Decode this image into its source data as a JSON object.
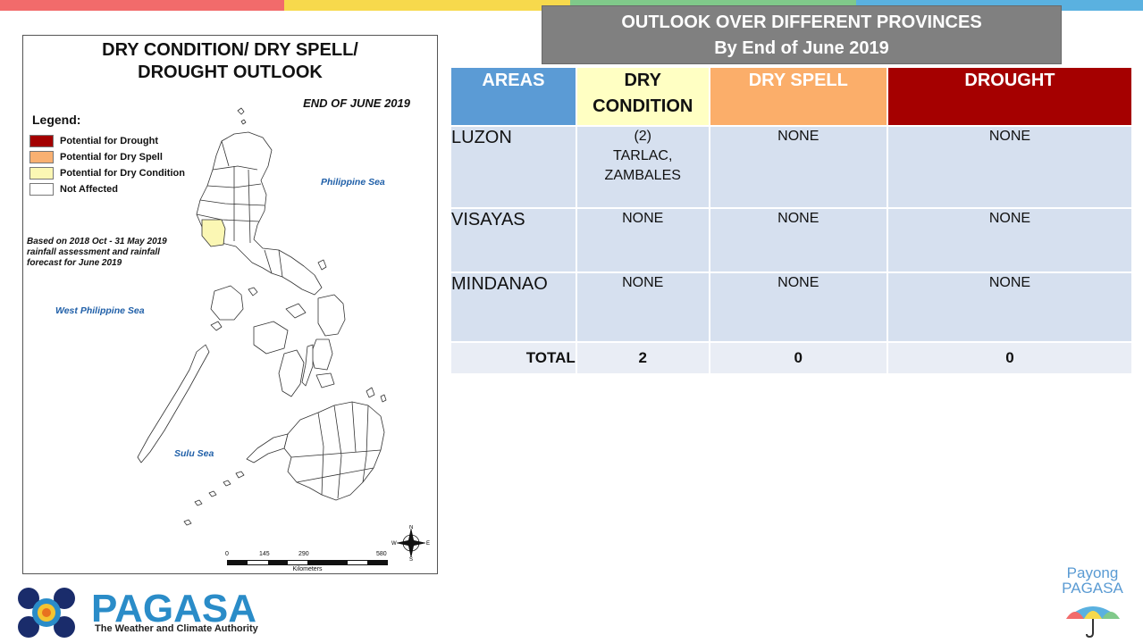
{
  "top_bar_colors": [
    "#f26b6b",
    "#f7d94c",
    "#80c98a",
    "#5ab1e0"
  ],
  "map": {
    "title_line1": "DRY CONDITION/ DRY SPELL/",
    "title_line2": "DROUGHT OUTLOOK",
    "date": "END OF JUNE 2019",
    "legend_title": "Legend:",
    "legend": [
      {
        "label": "Potential for Drought",
        "color": "#a30000"
      },
      {
        "label": "Potential for Dry Spell",
        "color": "#f9b071"
      },
      {
        "label": "Potential for Dry Condition",
        "color": "#fbf7b4"
      },
      {
        "label": "Not Affected",
        "color": "#ffffff"
      }
    ],
    "basis_line1": "Based on 2018 Oct - 31 May 2019",
    "basis_line2": "rainfall assessment and rainfall",
    "basis_line3": "forecast for June 2019",
    "seas": {
      "philippine": "Philippine Sea",
      "west_philippine": "West Philippine Sea",
      "sulu": "Sulu Sea"
    },
    "scale": {
      "ticks": [
        "0",
        "145",
        "290",
        "580"
      ],
      "unit": "Kilometers"
    },
    "compass": {
      "n": "N",
      "s": "S",
      "e": "E",
      "w": "W"
    }
  },
  "outlook": {
    "title_line1": "OUTLOOK OVER DIFFERENT PROVINCES",
    "title_line2": "By End of June 2019",
    "headers": {
      "areas": "AREAS",
      "dry_condition_1": "DRY",
      "dry_condition_2": "CONDITION",
      "dry_spell": "DRY SPELL",
      "drought": "DROUGHT"
    },
    "header_colors": {
      "areas": "#5b9bd5",
      "dry_condition": "#ffffc3",
      "dry_spell": "#fbae6a",
      "drought": "#a50000"
    },
    "rows": [
      {
        "area": "LUZON",
        "dry_condition_1": "(2)",
        "dry_condition_2": "TARLAC,",
        "dry_condition_3": "ZAMBALES",
        "dry_spell": "NONE",
        "drought": "NONE"
      },
      {
        "area": "VISAYAS",
        "dry_condition_1": "NONE",
        "dry_spell": "NONE",
        "drought": "NONE"
      },
      {
        "area": "MINDANAO",
        "dry_condition_1": "NONE",
        "dry_spell": "NONE",
        "drought": "NONE"
      }
    ],
    "total": {
      "label": "TOTAL",
      "dry_condition": "2",
      "dry_spell": "0",
      "drought": "0"
    }
  },
  "logo": {
    "name": "PAGASA",
    "tagline": "The Weather and Climate Authority"
  },
  "payong": {
    "line1": "Payong",
    "line2": "PAGASA"
  }
}
